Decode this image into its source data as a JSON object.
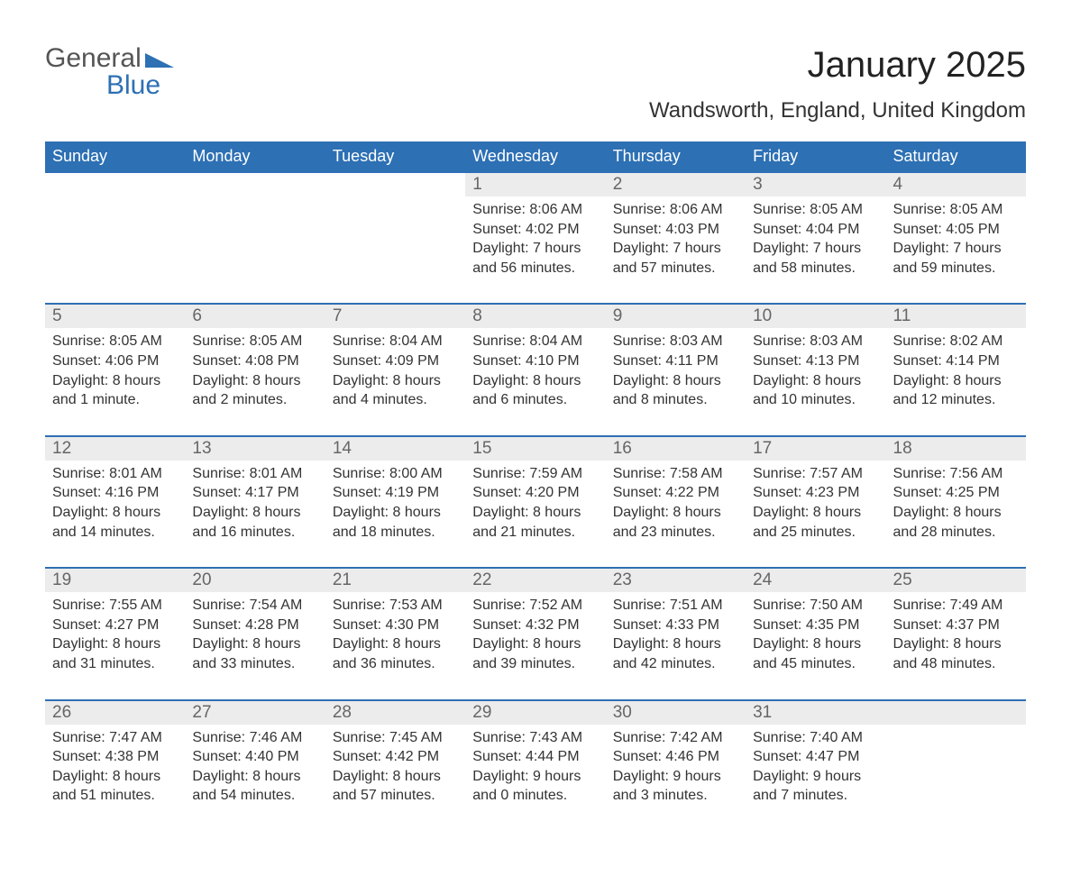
{
  "logo": {
    "top": "General",
    "bottom": "Blue"
  },
  "title": "January 2025",
  "location": "Wandsworth, England, United Kingdom",
  "colors": {
    "header_bg": "#2d70b4",
    "header_text": "#ffffff",
    "daynum_bg": "#ececec",
    "daynum_text": "#666666",
    "row_border": "#2d70b4",
    "body_text": "#333333",
    "logo_gray": "#555555",
    "logo_blue": "#2d70b4",
    "page_bg": "#ffffff"
  },
  "typography": {
    "title_fontsize": 40,
    "location_fontsize": 24,
    "dayheader_fontsize": 18,
    "daynum_fontsize": 19,
    "cell_fontsize": 16
  },
  "day_headers": [
    "Sunday",
    "Monday",
    "Tuesday",
    "Wednesday",
    "Thursday",
    "Friday",
    "Saturday"
  ],
  "weeks": [
    {
      "nums": [
        "",
        "",
        "",
        "1",
        "2",
        "3",
        "4"
      ],
      "cells": [
        {
          "sunrise": "",
          "sunset": "",
          "daylight1": "",
          "daylight2": ""
        },
        {
          "sunrise": "",
          "sunset": "",
          "daylight1": "",
          "daylight2": ""
        },
        {
          "sunrise": "",
          "sunset": "",
          "daylight1": "",
          "daylight2": ""
        },
        {
          "sunrise": "Sunrise: 8:06 AM",
          "sunset": "Sunset: 4:02 PM",
          "daylight1": "Daylight: 7 hours",
          "daylight2": "and 56 minutes."
        },
        {
          "sunrise": "Sunrise: 8:06 AM",
          "sunset": "Sunset: 4:03 PM",
          "daylight1": "Daylight: 7 hours",
          "daylight2": "and 57 minutes."
        },
        {
          "sunrise": "Sunrise: 8:05 AM",
          "sunset": "Sunset: 4:04 PM",
          "daylight1": "Daylight: 7 hours",
          "daylight2": "and 58 minutes."
        },
        {
          "sunrise": "Sunrise: 8:05 AM",
          "sunset": "Sunset: 4:05 PM",
          "daylight1": "Daylight: 7 hours",
          "daylight2": "and 59 minutes."
        }
      ]
    },
    {
      "nums": [
        "5",
        "6",
        "7",
        "8",
        "9",
        "10",
        "11"
      ],
      "cells": [
        {
          "sunrise": "Sunrise: 8:05 AM",
          "sunset": "Sunset: 4:06 PM",
          "daylight1": "Daylight: 8 hours",
          "daylight2": "and 1 minute."
        },
        {
          "sunrise": "Sunrise: 8:05 AM",
          "sunset": "Sunset: 4:08 PM",
          "daylight1": "Daylight: 8 hours",
          "daylight2": "and 2 minutes."
        },
        {
          "sunrise": "Sunrise: 8:04 AM",
          "sunset": "Sunset: 4:09 PM",
          "daylight1": "Daylight: 8 hours",
          "daylight2": "and 4 minutes."
        },
        {
          "sunrise": "Sunrise: 8:04 AM",
          "sunset": "Sunset: 4:10 PM",
          "daylight1": "Daylight: 8 hours",
          "daylight2": "and 6 minutes."
        },
        {
          "sunrise": "Sunrise: 8:03 AM",
          "sunset": "Sunset: 4:11 PM",
          "daylight1": "Daylight: 8 hours",
          "daylight2": "and 8 minutes."
        },
        {
          "sunrise": "Sunrise: 8:03 AM",
          "sunset": "Sunset: 4:13 PM",
          "daylight1": "Daylight: 8 hours",
          "daylight2": "and 10 minutes."
        },
        {
          "sunrise": "Sunrise: 8:02 AM",
          "sunset": "Sunset: 4:14 PM",
          "daylight1": "Daylight: 8 hours",
          "daylight2": "and 12 minutes."
        }
      ]
    },
    {
      "nums": [
        "12",
        "13",
        "14",
        "15",
        "16",
        "17",
        "18"
      ],
      "cells": [
        {
          "sunrise": "Sunrise: 8:01 AM",
          "sunset": "Sunset: 4:16 PM",
          "daylight1": "Daylight: 8 hours",
          "daylight2": "and 14 minutes."
        },
        {
          "sunrise": "Sunrise: 8:01 AM",
          "sunset": "Sunset: 4:17 PM",
          "daylight1": "Daylight: 8 hours",
          "daylight2": "and 16 minutes."
        },
        {
          "sunrise": "Sunrise: 8:00 AM",
          "sunset": "Sunset: 4:19 PM",
          "daylight1": "Daylight: 8 hours",
          "daylight2": "and 18 minutes."
        },
        {
          "sunrise": "Sunrise: 7:59 AM",
          "sunset": "Sunset: 4:20 PM",
          "daylight1": "Daylight: 8 hours",
          "daylight2": "and 21 minutes."
        },
        {
          "sunrise": "Sunrise: 7:58 AM",
          "sunset": "Sunset: 4:22 PM",
          "daylight1": "Daylight: 8 hours",
          "daylight2": "and 23 minutes."
        },
        {
          "sunrise": "Sunrise: 7:57 AM",
          "sunset": "Sunset: 4:23 PM",
          "daylight1": "Daylight: 8 hours",
          "daylight2": "and 25 minutes."
        },
        {
          "sunrise": "Sunrise: 7:56 AM",
          "sunset": "Sunset: 4:25 PM",
          "daylight1": "Daylight: 8 hours",
          "daylight2": "and 28 minutes."
        }
      ]
    },
    {
      "nums": [
        "19",
        "20",
        "21",
        "22",
        "23",
        "24",
        "25"
      ],
      "cells": [
        {
          "sunrise": "Sunrise: 7:55 AM",
          "sunset": "Sunset: 4:27 PM",
          "daylight1": "Daylight: 8 hours",
          "daylight2": "and 31 minutes."
        },
        {
          "sunrise": "Sunrise: 7:54 AM",
          "sunset": "Sunset: 4:28 PM",
          "daylight1": "Daylight: 8 hours",
          "daylight2": "and 33 minutes."
        },
        {
          "sunrise": "Sunrise: 7:53 AM",
          "sunset": "Sunset: 4:30 PM",
          "daylight1": "Daylight: 8 hours",
          "daylight2": "and 36 minutes."
        },
        {
          "sunrise": "Sunrise: 7:52 AM",
          "sunset": "Sunset: 4:32 PM",
          "daylight1": "Daylight: 8 hours",
          "daylight2": "and 39 minutes."
        },
        {
          "sunrise": "Sunrise: 7:51 AM",
          "sunset": "Sunset: 4:33 PM",
          "daylight1": "Daylight: 8 hours",
          "daylight2": "and 42 minutes."
        },
        {
          "sunrise": "Sunrise: 7:50 AM",
          "sunset": "Sunset: 4:35 PM",
          "daylight1": "Daylight: 8 hours",
          "daylight2": "and 45 minutes."
        },
        {
          "sunrise": "Sunrise: 7:49 AM",
          "sunset": "Sunset: 4:37 PM",
          "daylight1": "Daylight: 8 hours",
          "daylight2": "and 48 minutes."
        }
      ]
    },
    {
      "nums": [
        "26",
        "27",
        "28",
        "29",
        "30",
        "31",
        ""
      ],
      "cells": [
        {
          "sunrise": "Sunrise: 7:47 AM",
          "sunset": "Sunset: 4:38 PM",
          "daylight1": "Daylight: 8 hours",
          "daylight2": "and 51 minutes."
        },
        {
          "sunrise": "Sunrise: 7:46 AM",
          "sunset": "Sunset: 4:40 PM",
          "daylight1": "Daylight: 8 hours",
          "daylight2": "and 54 minutes."
        },
        {
          "sunrise": "Sunrise: 7:45 AM",
          "sunset": "Sunset: 4:42 PM",
          "daylight1": "Daylight: 8 hours",
          "daylight2": "and 57 minutes."
        },
        {
          "sunrise": "Sunrise: 7:43 AM",
          "sunset": "Sunset: 4:44 PM",
          "daylight1": "Daylight: 9 hours",
          "daylight2": "and 0 minutes."
        },
        {
          "sunrise": "Sunrise: 7:42 AM",
          "sunset": "Sunset: 4:46 PM",
          "daylight1": "Daylight: 9 hours",
          "daylight2": "and 3 minutes."
        },
        {
          "sunrise": "Sunrise: 7:40 AM",
          "sunset": "Sunset: 4:47 PM",
          "daylight1": "Daylight: 9 hours",
          "daylight2": "and 7 minutes."
        },
        {
          "sunrise": "",
          "sunset": "",
          "daylight1": "",
          "daylight2": ""
        }
      ]
    }
  ]
}
